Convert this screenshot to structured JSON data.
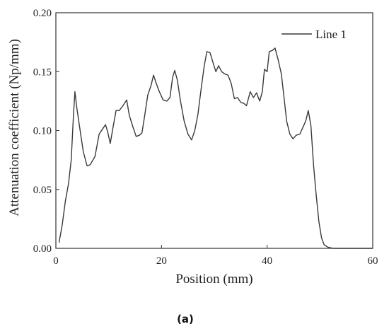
{
  "caption": "(a)",
  "chart_data": {
    "type": "line",
    "xlabel": "Position (mm)",
    "ylabel": "Attenuation coefficient (Np/mm)",
    "xlim": [
      0,
      60
    ],
    "ylim": [
      0,
      0.2
    ],
    "x_ticks": [
      "0",
      "20",
      "40",
      "60"
    ],
    "y_ticks": [
      "0.00",
      "0.05",
      "0.10",
      "0.15",
      "0.20"
    ],
    "grid": false,
    "legend_position": "top-right",
    "series": [
      {
        "name": "Line 1",
        "color": "#3a3a3a",
        "points": [
          [
            0.6,
            0.005
          ],
          [
            1.2,
            0.02
          ],
          [
            1.8,
            0.04
          ],
          [
            2.4,
            0.055
          ],
          [
            2.9,
            0.075
          ],
          [
            3.3,
            0.11
          ],
          [
            3.6,
            0.133
          ],
          [
            4.0,
            0.118
          ],
          [
            4.6,
            0.1
          ],
          [
            5.2,
            0.082
          ],
          [
            5.9,
            0.07
          ],
          [
            6.5,
            0.071
          ],
          [
            7.4,
            0.078
          ],
          [
            8.2,
            0.097
          ],
          [
            8.8,
            0.101
          ],
          [
            9.4,
            0.105
          ],
          [
            9.8,
            0.099
          ],
          [
            10.3,
            0.089
          ],
          [
            10.8,
            0.102
          ],
          [
            11.4,
            0.117
          ],
          [
            12.0,
            0.117
          ],
          [
            12.7,
            0.121
          ],
          [
            13.4,
            0.126
          ],
          [
            13.9,
            0.113
          ],
          [
            14.6,
            0.103
          ],
          [
            15.2,
            0.095
          ],
          [
            15.8,
            0.096
          ],
          [
            16.3,
            0.098
          ],
          [
            16.8,
            0.112
          ],
          [
            17.4,
            0.13
          ],
          [
            18.0,
            0.138
          ],
          [
            18.5,
            0.147
          ],
          [
            19.0,
            0.14
          ],
          [
            19.6,
            0.133
          ],
          [
            20.3,
            0.126
          ],
          [
            21.0,
            0.125
          ],
          [
            21.6,
            0.128
          ],
          [
            22.1,
            0.145
          ],
          [
            22.5,
            0.151
          ],
          [
            23.0,
            0.143
          ],
          [
            23.6,
            0.125
          ],
          [
            24.3,
            0.108
          ],
          [
            25.0,
            0.097
          ],
          [
            25.7,
            0.092
          ],
          [
            26.3,
            0.1
          ],
          [
            26.9,
            0.114
          ],
          [
            27.5,
            0.135
          ],
          [
            28.1,
            0.155
          ],
          [
            28.6,
            0.167
          ],
          [
            29.2,
            0.166
          ],
          [
            29.8,
            0.157
          ],
          [
            30.3,
            0.15
          ],
          [
            30.8,
            0.155
          ],
          [
            31.4,
            0.15
          ],
          [
            32.0,
            0.148
          ],
          [
            32.6,
            0.147
          ],
          [
            33.2,
            0.14
          ],
          [
            33.8,
            0.127
          ],
          [
            34.4,
            0.128
          ],
          [
            35.0,
            0.124
          ],
          [
            35.6,
            0.123
          ],
          [
            36.1,
            0.121
          ],
          [
            36.8,
            0.133
          ],
          [
            37.4,
            0.128
          ],
          [
            38.0,
            0.132
          ],
          [
            38.6,
            0.125
          ],
          [
            39.1,
            0.133
          ],
          [
            39.5,
            0.152
          ],
          [
            40.0,
            0.15
          ],
          [
            40.4,
            0.167
          ],
          [
            41.0,
            0.168
          ],
          [
            41.5,
            0.17
          ],
          [
            42.1,
            0.16
          ],
          [
            42.7,
            0.148
          ],
          [
            43.2,
            0.128
          ],
          [
            43.7,
            0.108
          ],
          [
            44.3,
            0.097
          ],
          [
            44.9,
            0.093
          ],
          [
            45.5,
            0.096
          ],
          [
            46.2,
            0.097
          ],
          [
            46.7,
            0.102
          ],
          [
            47.3,
            0.108
          ],
          [
            47.8,
            0.117
          ],
          [
            48.3,
            0.104
          ],
          [
            48.8,
            0.07
          ],
          [
            49.3,
            0.045
          ],
          [
            49.8,
            0.023
          ],
          [
            50.3,
            0.009
          ],
          [
            50.8,
            0.003
          ],
          [
            51.5,
            0.001
          ],
          [
            52.5,
            0.0
          ],
          [
            60.0,
            0.0
          ]
        ]
      }
    ]
  }
}
